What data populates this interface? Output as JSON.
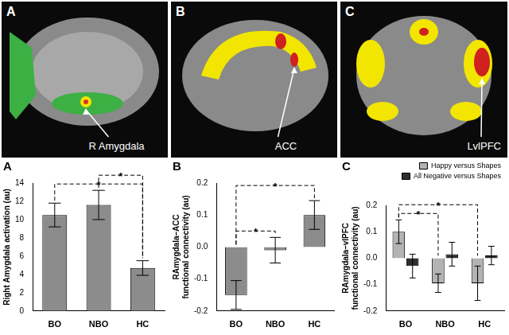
{
  "brain_panels": [
    {
      "panel": "A",
      "label": "R Amygdala"
    },
    {
      "panel": "B",
      "label": "ACC"
    },
    {
      "panel": "C",
      "label": "LvlPFC"
    }
  ],
  "chart_data": [
    {
      "panel": "A",
      "type": "bar",
      "ylabel": "Right Amygdala activation (au)",
      "categories": [
        "BO",
        "NBO",
        "HC"
      ],
      "values": [
        10.5,
        11.6,
        4.7
      ],
      "errors": [
        1.3,
        1.6,
        0.8
      ],
      "color": "#8c8c8c",
      "ylim": [
        0,
        14
      ],
      "yticks": [
        0,
        2,
        4,
        6,
        8,
        10,
        12,
        14
      ],
      "grid": false,
      "significance": [
        {
          "from": "BO",
          "to": "HC",
          "label": "*"
        },
        {
          "from": "NBO",
          "to": "HC",
          "label": "*"
        }
      ]
    },
    {
      "panel": "B",
      "type": "bar",
      "ylabel": [
        "RAmygdala–ACC",
        "functional connectivity (au)"
      ],
      "categories": [
        "BO",
        "NBO",
        "HC"
      ],
      "values": [
        -0.15,
        -0.01,
        0.1
      ],
      "errors": [
        0.045,
        0.04,
        0.045
      ],
      "color": "#8c8c8c",
      "ylim": [
        -0.2,
        0.2
      ],
      "yticks": [
        {
          "value": -0.2,
          "label": "-0.2"
        },
        {
          "value": -0.1,
          "label": "-0.1"
        },
        {
          "value": 0,
          "label": "0.0"
        },
        {
          "value": 0.1,
          "label": "0.1"
        },
        {
          "value": 0.2,
          "label": "0.2"
        }
      ],
      "grid": false,
      "significance": [
        {
          "from": "BO",
          "to": "NBO",
          "label": "*"
        },
        {
          "from": "BO",
          "to": "HC",
          "label": "*"
        }
      ]
    },
    {
      "panel": "C",
      "type": "bar",
      "ylabel": [
        "RAmygdala–vlPFC",
        "functional connectivity (au)"
      ],
      "categories": [
        "BO",
        "NBO",
        "HC"
      ],
      "series": [
        {
          "name": "Happy versus Shapes",
          "color": "#b3b3b3",
          "values": [
            0.1,
            -0.095,
            -0.095
          ],
          "errors": [
            0.045,
            0.035,
            0.065
          ]
        },
        {
          "name": "All Negative versus Shapes",
          "color": "#2e2e2e",
          "values": [
            -0.03,
            0.015,
            0.01
          ],
          "errors": [
            0.045,
            0.045,
            0.035
          ]
        }
      ],
      "ylim": [
        -0.2,
        0.2
      ],
      "yticks": [
        {
          "value": -0.2,
          "label": "-0.2"
        },
        {
          "value": -0.1,
          "label": "-0.1"
        },
        {
          "value": 0,
          "label": "0.0"
        },
        {
          "value": 0.1,
          "label": "0.1"
        },
        {
          "value": 0.2,
          "label": "0.2"
        }
      ],
      "grid": false,
      "legend": "top",
      "significance": [
        {
          "from": "BO",
          "to": "NBO",
          "label": "*",
          "series": "Happy versus Shapes"
        },
        {
          "from": "BO",
          "to": "HC",
          "label": "*",
          "series": "Happy versus Shapes"
        }
      ]
    }
  ]
}
